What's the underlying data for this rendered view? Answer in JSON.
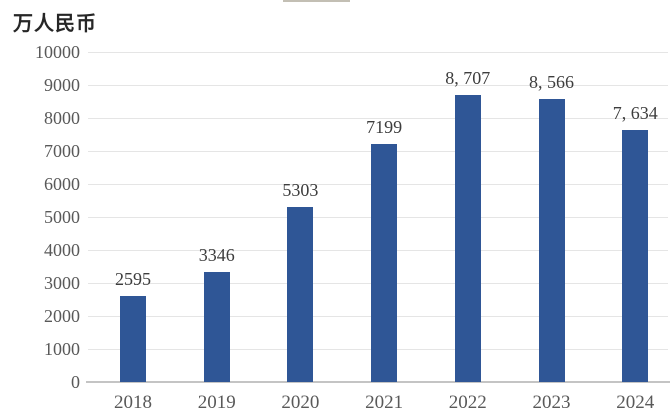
{
  "chart_data": {
    "type": "bar",
    "unit_label": "万人民币",
    "categories": [
      "2018",
      "2019",
      "2020",
      "2021",
      "2022",
      "2023",
      "2024"
    ],
    "values": [
      2595,
      3346,
      5303,
      7199,
      8707,
      8566,
      7634
    ],
    "value_labels": [
      "2595",
      "3346",
      "5303",
      "7199",
      "8, 707",
      "8, 566",
      "7, 634"
    ],
    "yticks": [
      0,
      1000,
      2000,
      3000,
      4000,
      5000,
      6000,
      7000,
      8000,
      9000,
      10000
    ],
    "ylim": [
      0,
      10000
    ],
    "grid": true,
    "legend": "none",
    "colors": {
      "bar": "#2F5696",
      "gridline": "#E5E5E5",
      "axis_line": "#C4C4C4",
      "tick_text": "#595959",
      "category_text": "#595959",
      "value_label_text": "#3D3D3D",
      "unit_text": "#262626",
      "background": "#FFFFFF",
      "cropped_remnant": "#BDB8AC"
    }
  }
}
